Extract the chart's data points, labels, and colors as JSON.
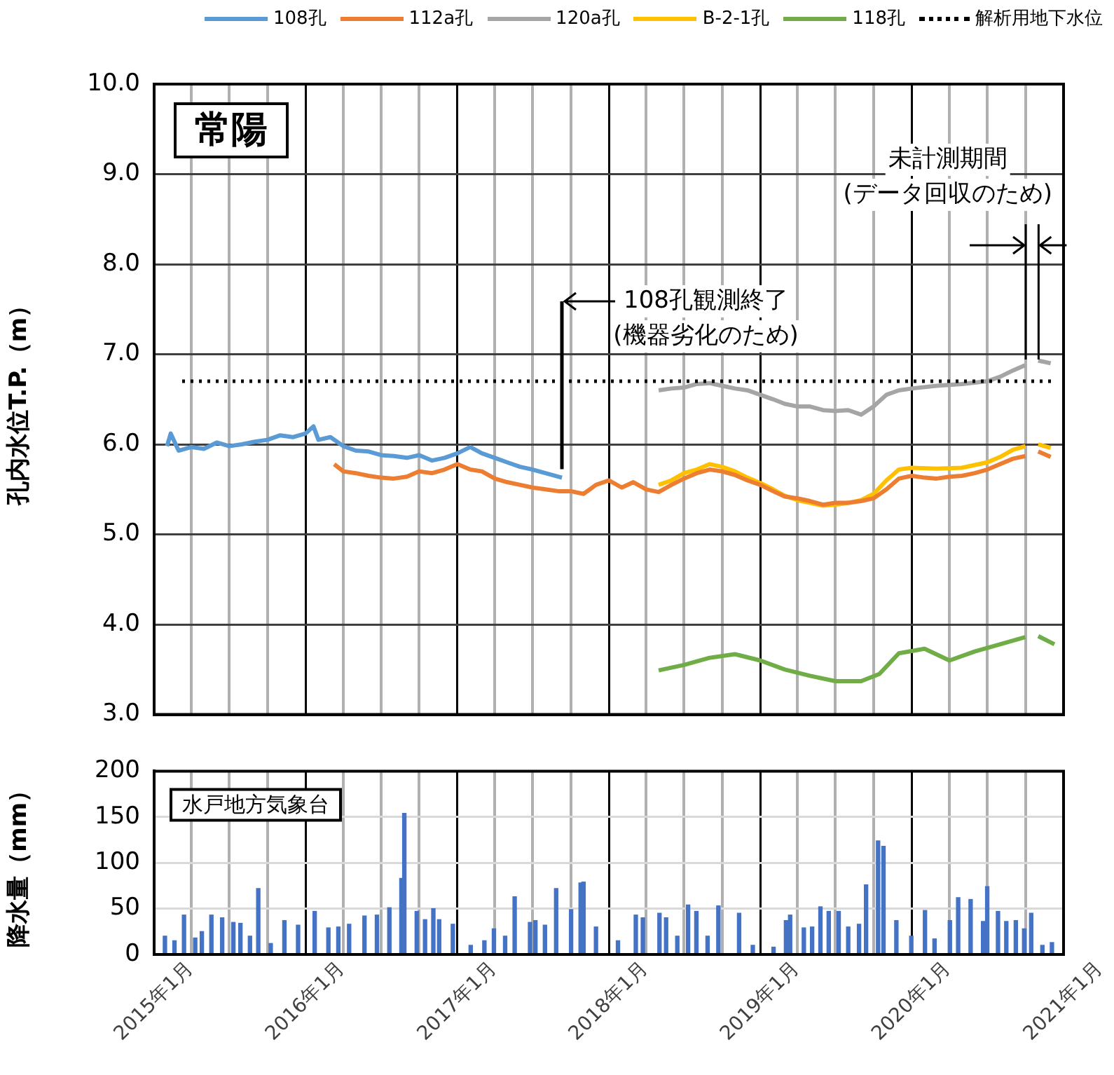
{
  "chart_data": [
    {
      "type": "line",
      "ylabel": "孔内水位T.P.（m）",
      "legend": "top",
      "grid": true,
      "tick_labels": "y",
      "line_style": "solid",
      "marker": "none",
      "xlim": [
        "2015-01",
        "2021-01"
      ],
      "xticks": [
        {
          "value": "2015-01",
          "label": null
        },
        {
          "value": "2015-04",
          "label": null
        },
        {
          "value": "2015-07",
          "label": null
        },
        {
          "value": "2015-10",
          "label": null
        },
        {
          "value": "2016-01",
          "label": null
        },
        {
          "value": "2016-04",
          "label": null
        },
        {
          "value": "2016-07",
          "label": null
        },
        {
          "value": "2016-10",
          "label": null
        },
        {
          "value": "2017-01",
          "label": null
        },
        {
          "value": "2017-04",
          "label": null
        },
        {
          "value": "2017-07",
          "label": null
        },
        {
          "value": "2017-10",
          "label": null
        },
        {
          "value": "2018-01",
          "label": null
        },
        {
          "value": "2018-04",
          "label": null
        },
        {
          "value": "2018-07",
          "label": null
        },
        {
          "value": "2018-10",
          "label": null
        },
        {
          "value": "2019-01",
          "label": null
        },
        {
          "value": "2019-04",
          "label": null
        },
        {
          "value": "2019-07",
          "label": null
        },
        {
          "value": "2019-10",
          "label": null
        },
        {
          "value": "2020-01",
          "label": null
        },
        {
          "value": "2020-04",
          "label": null
        },
        {
          "value": "2020-07",
          "label": null
        },
        {
          "value": "2020-10",
          "label": null
        },
        {
          "value": "2021-01",
          "label": null
        }
      ],
      "ylim": [
        3,
        10
      ],
      "yticks": [
        {
          "value": 3,
          "label": "3.0"
        },
        {
          "value": 4,
          "label": "4.0"
        },
        {
          "value": 5,
          "label": "5.0"
        },
        {
          "value": 6,
          "label": "6.0"
        },
        {
          "value": 7,
          "label": "7.0"
        },
        {
          "value": 8,
          "label": "8.0"
        },
        {
          "value": 9,
          "label": "9.0"
        },
        {
          "value": 10,
          "label": "10.0"
        }
      ],
      "series": [
        {
          "name": "108孔",
          "color": "#5b9bd5",
          "x": [
            "2015-02-01",
            "2015-02-10",
            "2015-03-01",
            "2015-04-01",
            "2015-05-01",
            "2015-06-01",
            "2015-07-01",
            "2015-08-01",
            "2015-09-01",
            "2015-10-01",
            "2015-11-01",
            "2015-12-01",
            "2016-01-01",
            "2016-01-20",
            "2016-02-01",
            "2016-03-01",
            "2016-04-01",
            "2016-05-01",
            "2016-06-01",
            "2016-07-01",
            "2016-08-01",
            "2016-09-01",
            "2016-10-01",
            "2016-11-01",
            "2016-12-01",
            "2017-01-01",
            "2017-02-01",
            "2017-03-01",
            "2017-04-01",
            "2017-05-01",
            "2017-06-01",
            "2017-07-01",
            "2017-08-01",
            "2017-09-10"
          ],
          "values": [
            5.98,
            6.12,
            5.93,
            5.97,
            5.95,
            6.02,
            5.98,
            6.0,
            6.03,
            6.05,
            6.1,
            6.08,
            6.12,
            6.2,
            6.05,
            6.08,
            5.98,
            5.93,
            5.92,
            5.88,
            5.87,
            5.85,
            5.88,
            5.82,
            5.85,
            5.9,
            5.97,
            5.9,
            5.85,
            5.8,
            5.75,
            5.72,
            5.68,
            5.63
          ]
        },
        {
          "name": "112a孔",
          "color": "#ed7d31",
          "x": [
            "2016-03-10",
            "2016-04-01",
            "2016-05-01",
            "2016-06-01",
            "2016-07-01",
            "2016-08-01",
            "2016-09-01",
            "2016-10-01",
            "2016-11-01",
            "2016-12-01",
            "2017-01-01",
            "2017-02-01",
            "2017-03-01",
            "2017-04-01",
            "2017-05-01",
            "2017-06-01",
            "2017-07-01",
            "2017-08-01",
            "2017-09-01",
            "2017-10-01",
            "2017-11-01",
            "2017-12-01",
            "2018-01-01",
            "2018-02-01",
            "2018-03-01",
            "2018-04-01",
            "2018-05-01",
            "2018-06-01",
            "2018-07-01",
            "2018-08-01",
            "2018-09-01",
            "2018-10-01",
            "2018-11-01",
            "2018-12-01",
            "2019-01-01",
            "2019-02-01",
            "2019-03-01",
            "2019-04-01",
            "2019-05-01",
            "2019-06-01",
            "2019-07-01",
            "2019-08-01",
            "2019-09-01",
            "2019-10-01",
            "2019-11-01",
            "2019-12-01",
            "2020-01-01",
            "2020-02-01",
            "2020-03-01",
            "2020-04-01",
            "2020-05-01",
            "2020-06-01",
            "2020-07-01",
            "2020-08-01",
            "2020-09-01",
            "2020-10-01",
            "2020-10-20",
            "2020-11-01",
            "2020-12-01"
          ],
          "values": [
            5.78,
            5.7,
            5.68,
            5.65,
            5.63,
            5.62,
            5.64,
            5.7,
            5.68,
            5.72,
            5.78,
            5.72,
            5.7,
            5.62,
            5.58,
            5.55,
            5.52,
            5.5,
            5.48,
            5.48,
            5.45,
            5.55,
            5.6,
            5.52,
            5.58,
            5.5,
            5.47,
            5.55,
            5.62,
            5.68,
            5.72,
            5.7,
            5.66,
            5.6,
            5.55,
            5.48,
            5.42,
            5.4,
            5.37,
            5.33,
            5.35,
            5.35,
            5.37,
            5.4,
            5.5,
            5.62,
            5.65,
            5.63,
            5.62,
            5.64,
            5.65,
            5.68,
            5.72,
            5.78,
            5.84,
            5.87,
            null,
            5.92,
            5.86
          ]
        },
        {
          "name": "120a孔",
          "color": "#a5a5a5",
          "x": [
            "2018-05-01",
            "2018-06-01",
            "2018-07-01",
            "2018-08-01",
            "2018-09-01",
            "2018-10-01",
            "2018-11-01",
            "2018-12-01",
            "2019-01-01",
            "2019-02-01",
            "2019-03-01",
            "2019-04-01",
            "2019-05-01",
            "2019-06-01",
            "2019-07-01",
            "2019-08-01",
            "2019-09-01",
            "2019-10-01",
            "2019-11-01",
            "2019-12-01",
            "2020-01-01",
            "2020-03-01",
            "2020-05-01",
            "2020-07-01",
            "2020-08-01",
            "2020-09-01",
            "2020-10-01",
            "2020-10-20",
            "2020-11-01",
            "2020-12-01"
          ],
          "values": [
            6.6,
            6.62,
            6.63,
            6.67,
            6.68,
            6.65,
            6.62,
            6.6,
            6.55,
            6.5,
            6.45,
            6.42,
            6.42,
            6.38,
            6.37,
            6.38,
            6.33,
            6.42,
            6.55,
            6.6,
            6.62,
            6.65,
            6.67,
            6.7,
            6.75,
            6.82,
            6.88,
            null,
            6.93,
            6.9
          ]
        },
        {
          "name": "B-2-1孔",
          "color": "#ffc000",
          "x": [
            "2018-05-01",
            "2018-06-01",
            "2018-07-01",
            "2018-08-01",
            "2018-09-01",
            "2018-10-01",
            "2018-11-01",
            "2018-12-01",
            "2019-01-01",
            "2019-02-01",
            "2019-03-01",
            "2019-04-01",
            "2019-05-01",
            "2019-06-01",
            "2019-07-01",
            "2019-08-01",
            "2019-09-01",
            "2019-10-01",
            "2019-11-01",
            "2019-12-01",
            "2020-01-01",
            "2020-03-01",
            "2020-05-01",
            "2020-07-01",
            "2020-08-01",
            "2020-09-01",
            "2020-10-01",
            "2020-10-20",
            "2020-11-01",
            "2020-12-01"
          ],
          "values": [
            5.55,
            5.6,
            5.68,
            5.72,
            5.78,
            5.75,
            5.7,
            5.63,
            5.57,
            5.5,
            5.43,
            5.38,
            5.35,
            5.32,
            5.33,
            5.35,
            5.38,
            5.45,
            5.6,
            5.72,
            5.74,
            5.73,
            5.74,
            5.8,
            5.86,
            5.94,
            5.98,
            null,
            6.0,
            5.96
          ]
        },
        {
          "name": "118孔",
          "color": "#70ad47",
          "x": [
            "2018-05-01",
            "2018-07-01",
            "2018-09-01",
            "2018-11-01",
            "2019-01-01",
            "2019-03-01",
            "2019-05-01",
            "2019-07-01",
            "2019-09-01",
            "2019-10-15",
            "2019-12-01",
            "2020-02-01",
            "2020-04-01",
            "2020-06-01",
            "2020-08-01",
            "2020-10-01",
            "2020-10-20",
            "2020-11-01",
            "2020-12-10"
          ],
          "values": [
            3.49,
            3.55,
            3.63,
            3.67,
            3.6,
            3.5,
            3.43,
            3.37,
            3.37,
            3.45,
            3.68,
            3.73,
            3.6,
            3.7,
            3.78,
            3.86,
            null,
            3.87,
            3.78
          ]
        }
      ],
      "ref_lines": [
        {
          "axis": "y",
          "value": 6.7,
          "label": "解析用地下水位",
          "color": "#000000",
          "line_style": "dotted"
        }
      ],
      "annotations": [
        "常陽",
        "108孔観測終了\n(機器劣化のため)",
        {
          "text": "未計測期間\n(データ回収のため)",
          "x": "2020-10-01",
          "y": 6.88
        }
      ]
    },
    {
      "type": "bar",
      "ylabel": "降水量（mm）",
      "legend": false,
      "grid": true,
      "color": "#4472c4",
      "xlim": [
        "2015-01",
        "2021-01"
      ],
      "xticks": [
        {
          "value": "2015-01",
          "label": "2015年1月"
        },
        {
          "value": "2015-04",
          "label": null
        },
        {
          "value": "2015-07",
          "label": null
        },
        {
          "value": "2015-10",
          "label": null
        },
        {
          "value": "2016-01",
          "label": "2016年1月"
        },
        {
          "value": "2016-04",
          "label": null
        },
        {
          "value": "2016-07",
          "label": null
        },
        {
          "value": "2016-10",
          "label": null
        },
        {
          "value": "2017-01",
          "label": "2017年1月"
        },
        {
          "value": "2017-04",
          "label": null
        },
        {
          "value": "2017-07",
          "label": null
        },
        {
          "value": "2017-10",
          "label": null
        },
        {
          "value": "2018-01",
          "label": "2018年1月"
        },
        {
          "value": "2018-04",
          "label": null
        },
        {
          "value": "2018-07",
          "label": null
        },
        {
          "value": "2018-10",
          "label": null
        },
        {
          "value": "2019-01",
          "label": "2019年1月"
        },
        {
          "value": "2019-04",
          "label": null
        },
        {
          "value": "2019-07",
          "label": null
        },
        {
          "value": "2019-10",
          "label": null
        },
        {
          "value": "2020-01",
          "label": "2020年1月"
        },
        {
          "value": "2020-04",
          "label": null
        },
        {
          "value": "2020-07",
          "label": null
        },
        {
          "value": "2020-10",
          "label": null
        },
        {
          "value": "2021-01",
          "label": "2021年1月"
        }
      ],
      "ylim": [
        0,
        200
      ],
      "yticks": [
        0,
        50,
        100,
        150,
        200
      ],
      "x": [
        "2015-01-27",
        "2015-02-19",
        "2015-03-14",
        "2015-04-10",
        "2015-04-26",
        "2015-05-19",
        "2015-06-14",
        "2015-07-11",
        "2015-07-28",
        "2015-08-20",
        "2015-09-09",
        "2015-10-09",
        "2015-11-11",
        "2015-12-14",
        "2016-01-23",
        "2016-02-25",
        "2016-03-20",
        "2016-04-15",
        "2016-05-22",
        "2016-06-21",
        "2016-07-21",
        "2016-08-19",
        "2016-08-26",
        "2016-09-25",
        "2016-10-15",
        "2016-11-04",
        "2016-11-18",
        "2016-12-21",
        "2017-02-02",
        "2017-03-07",
        "2017-03-30",
        "2017-04-26",
        "2017-05-19",
        "2017-06-25",
        "2017-07-08",
        "2017-07-31",
        "2017-08-27",
        "2017-10-02",
        "2017-10-25",
        "2017-11-01",
        "2017-12-01",
        "2018-01-23",
        "2018-03-07",
        "2018-03-24",
        "2018-05-03",
        "2018-05-19",
        "2018-06-15",
        "2018-07-11",
        "2018-07-31",
        "2018-08-27",
        "2018-09-22",
        "2018-11-11",
        "2018-12-14",
        "2019-02-02",
        "2019-03-04",
        "2019-03-14",
        "2019-04-16",
        "2019-05-06",
        "2019-05-26",
        "2019-06-15",
        "2019-07-09",
        "2019-08-01",
        "2019-08-27",
        "2019-09-13",
        "2019-10-12",
        "2019-10-25",
        "2019-11-25",
        "2019-12-31",
        "2020-02-02",
        "2020-02-25",
        "2020-04-02",
        "2020-04-22",
        "2020-05-22",
        "2020-06-21",
        "2020-07-01",
        "2020-07-27",
        "2020-08-16",
        "2020-09-08",
        "2020-09-28",
        "2020-10-15",
        "2020-11-11",
        "2020-12-04"
      ],
      "values": [
        20,
        15,
        43,
        18,
        25,
        43,
        40,
        35,
        34,
        20,
        72,
        12,
        37,
        32,
        47,
        29,
        30,
        33,
        42,
        43,
        51,
        83,
        154,
        47,
        38,
        50,
        38,
        33,
        10,
        15,
        28,
        20,
        63,
        35,
        37,
        32,
        72,
        49,
        78,
        79,
        30,
        15,
        43,
        40,
        45,
        40,
        20,
        54,
        47,
        20,
        53,
        45,
        10,
        8,
        37,
        43,
        29,
        30,
        52,
        47,
        47,
        30,
        33,
        76,
        124,
        118,
        37,
        20,
        48,
        17,
        37,
        62,
        60,
        36,
        74,
        47,
        36,
        37,
        28,
        45,
        10,
        13
      ],
      "annotations": [
        "水戸地方気象台"
      ]
    }
  ]
}
